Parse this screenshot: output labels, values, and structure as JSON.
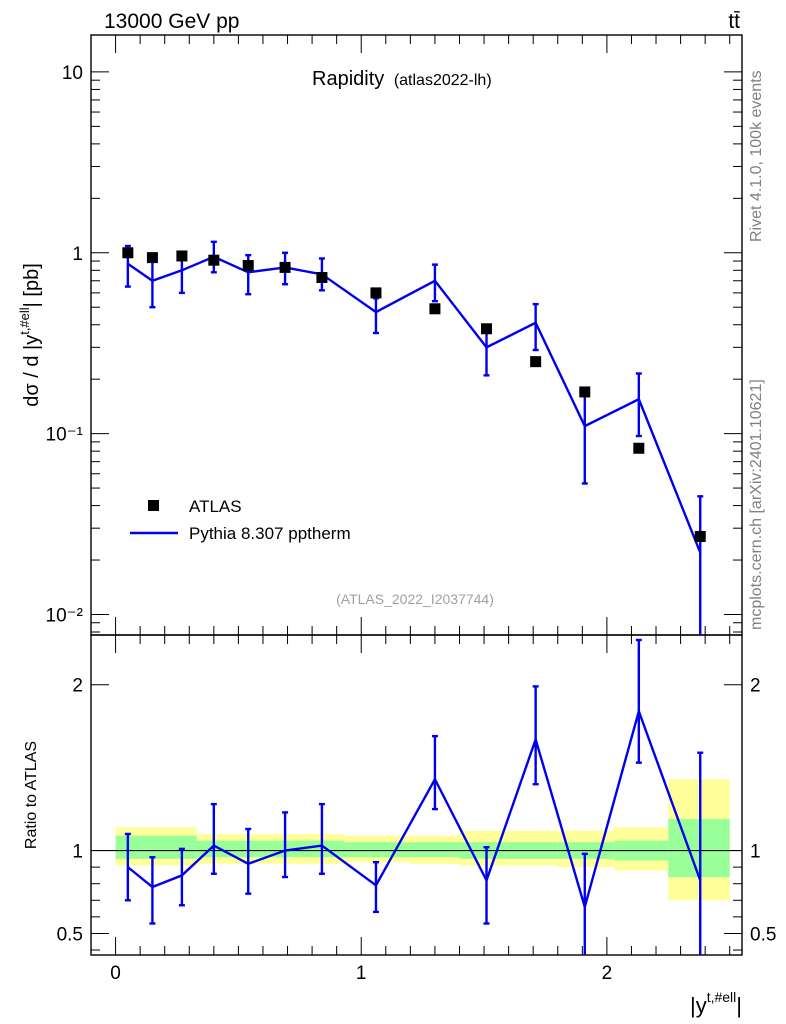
{
  "header": {
    "energy_label": "13000 GeV pp",
    "process_label": "tt̄"
  },
  "side_labels": {
    "rivet": "Rivet 4.1.0,  100k events",
    "mcplots": "mcplots.cern.ch [arXiv:2401.10621]"
  },
  "colors": {
    "data": "#000000",
    "mc": "#0000ee",
    "band_stat": "#99ff99",
    "band_total": "#ffff99"
  },
  "chart_data": [
    {
      "type": "scatter",
      "panel": "main",
      "title": "Rapidity",
      "subtitle": "(atlas2022-lh)",
      "analysis_id": "(ATLAS_2022_I2037744)",
      "ylabel": "dσ / d |y^{t,#ell}| [pb]",
      "xlabel": "",
      "yscale": "log",
      "xlim": [
        -0.1,
        2.55
      ],
      "ylim": [
        0.0077,
        16
      ],
      "y_ticks": [
        {
          "value": 10,
          "label": "10"
        },
        {
          "value": 1,
          "label": "1"
        },
        {
          "value": 0.1,
          "label": "10⁻¹"
        },
        {
          "value": 0.01,
          "label": "10⁻²"
        }
      ],
      "legend_position": "lower-left",
      "legend": [
        {
          "name": "ATLAS",
          "style": "square-marker"
        },
        {
          "name": "Pythia 8.307 pptherm",
          "style": "line"
        }
      ],
      "series": [
        {
          "name": "ATLAS",
          "style": "markers",
          "x": [
            0.05,
            0.15,
            0.27,
            0.4,
            0.54,
            0.69,
            0.84,
            1.06,
            1.3,
            1.51,
            1.71,
            1.91,
            2.13,
            2.38
          ],
          "y": [
            1.0,
            0.94,
            0.96,
            0.91,
            0.85,
            0.83,
            0.73,
            0.6,
            0.49,
            0.38,
            0.25,
            0.17,
            0.083,
            0.027
          ]
        },
        {
          "name": "Pythia 8.307 pptherm",
          "style": "line",
          "x": [
            0.05,
            0.15,
            0.27,
            0.4,
            0.54,
            0.69,
            0.84,
            1.06,
            1.3,
            1.51,
            1.71,
            1.91,
            2.13,
            2.38
          ],
          "y": [
            0.87,
            0.7,
            0.8,
            0.95,
            0.78,
            0.83,
            0.76,
            0.47,
            0.7,
            0.3,
            0.41,
            0.11,
            0.155,
            0.022
          ],
          "yerr_low": [
            0.22,
            0.2,
            0.2,
            0.17,
            0.19,
            0.16,
            0.14,
            0.11,
            0.16,
            0.09,
            0.12,
            0.057,
            0.058,
            0.0155
          ],
          "yerr_high": [
            0.22,
            0.2,
            0.2,
            0.2,
            0.19,
            0.17,
            0.17,
            0.09,
            0.16,
            0.1,
            0.11,
            0.055,
            0.06,
            0.023
          ]
        }
      ]
    },
    {
      "type": "line",
      "panel": "ratio",
      "xlabel": "|y^{t,#ell}|",
      "ylabel": "Ratio to ATLAS",
      "xlim": [
        -0.1,
        2.55
      ],
      "ylim": [
        0.37,
        2.3
      ],
      "x_ticks": [
        {
          "value": 0,
          "label": "0"
        },
        {
          "value": 1,
          "label": "1"
        },
        {
          "value": 2,
          "label": "2"
        }
      ],
      "y_ticks": [
        {
          "value": 2,
          "label": "2"
        },
        {
          "value": 1,
          "label": "1"
        },
        {
          "value": 0.5,
          "label": "0.5"
        }
      ],
      "bin_edges": [
        0.0,
        0.33,
        0.93,
        1.2,
        1.4,
        1.6,
        1.8,
        2.03,
        2.25,
        2.5
      ],
      "band_stat": {
        "low": [
          0.95,
          0.96,
          0.96,
          0.96,
          0.95,
          0.95,
          0.95,
          0.94,
          0.84
        ],
        "high": [
          1.09,
          1.06,
          1.05,
          1.05,
          1.05,
          1.05,
          1.05,
          1.06,
          1.19
        ]
      },
      "band_total": {
        "low": [
          0.91,
          0.92,
          0.93,
          0.92,
          0.91,
          0.91,
          0.9,
          0.88,
          0.7
        ],
        "high": [
          1.14,
          1.1,
          1.09,
          1.09,
          1.12,
          1.12,
          1.12,
          1.14,
          1.43
        ]
      },
      "series": [
        {
          "name": "Pythia 8.307 pptherm / ATLAS",
          "x": [
            0.05,
            0.15,
            0.27,
            0.4,
            0.54,
            0.69,
            0.84,
            1.06,
            1.3,
            1.51,
            1.71,
            1.91,
            2.13,
            2.38
          ],
          "y": [
            0.9,
            0.78,
            0.85,
            1.03,
            0.92,
            1.0,
            1.03,
            0.79,
            1.43,
            0.82,
            1.67,
            0.66,
            1.84,
            0.82
          ],
          "yerr_low": [
            0.2,
            0.22,
            0.18,
            0.17,
            0.18,
            0.16,
            0.17,
            0.16,
            0.18,
            0.26,
            0.27,
            0.3,
            0.31,
            0.46
          ],
          "yerr_high": [
            0.2,
            0.18,
            0.16,
            0.25,
            0.21,
            0.23,
            0.25,
            0.14,
            0.26,
            0.2,
            0.32,
            0.32,
            0.43,
            0.77
          ]
        }
      ]
    }
  ]
}
